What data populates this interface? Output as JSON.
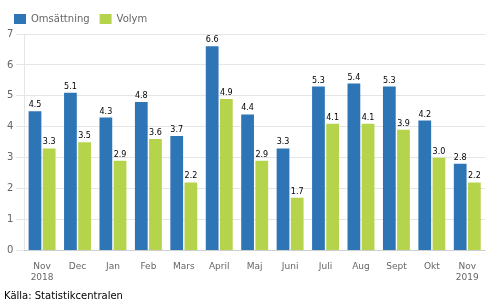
{
  "chart_data": {
    "type": "bar",
    "categories": [
      "Nov\n2018",
      "Dec",
      "Jan",
      "Feb",
      "Mars",
      "April",
      "Maj",
      "Juni",
      "Juli",
      "Aug",
      "Sept",
      "Okt",
      "Nov\n2019"
    ],
    "series": [
      {
        "name": "Omsättning",
        "color": "#2e75b6",
        "values": [
          4.5,
          5.1,
          4.3,
          4.8,
          3.7,
          6.6,
          4.4,
          3.3,
          5.3,
          5.4,
          5.3,
          4.2,
          2.8
        ]
      },
      {
        "name": "Volym",
        "color": "#b5d44b",
        "values": [
          3.3,
          3.5,
          2.9,
          3.6,
          2.2,
          4.9,
          2.9,
          1.7,
          4.1,
          4.1,
          3.9,
          3.0,
          2.2
        ],
        "value_labels": [
          "3.3",
          "3.5",
          "2.9",
          "3.6",
          "2.2",
          "4.9",
          "2.9",
          "1.7",
          "4.1",
          "4.1",
          "3.9",
          "3.0",
          "2.2"
        ]
      }
    ],
    "ylim": [
      0,
      7
    ],
    "yticks": [
      0,
      1,
      2,
      3,
      4,
      5,
      6,
      7
    ],
    "grid": true,
    "legend": "upper left",
    "data_labels": true,
    "annotations": [
      "Källa: Statistikcentralen"
    ]
  }
}
